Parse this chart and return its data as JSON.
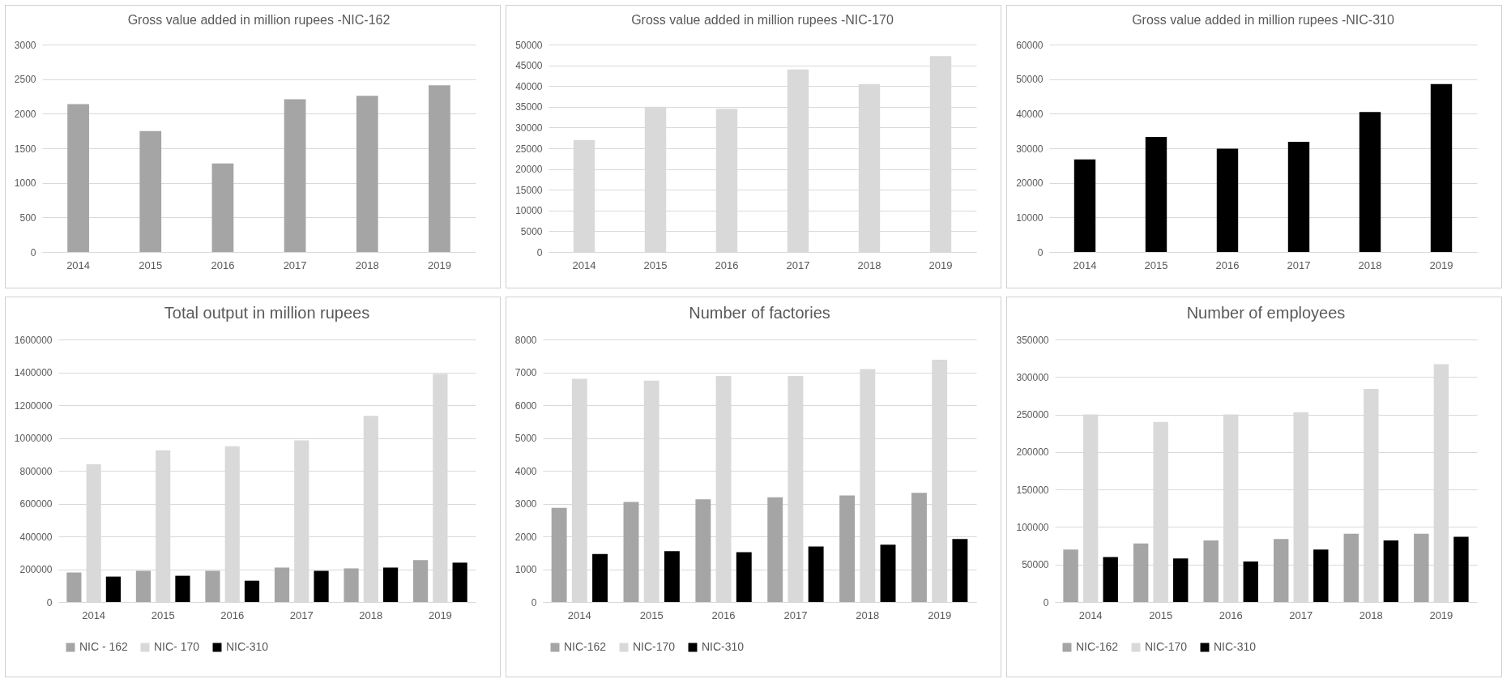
{
  "chart_data": [
    {
      "type": "bar",
      "title": "Gross value added in million rupees -NIC-162",
      "categories": [
        "2014",
        "2015",
        "2016",
        "2017",
        "2018",
        "2019"
      ],
      "values": [
        2140,
        1750,
        1280,
        2210,
        2260,
        2410
      ],
      "color": "#a5a5a5",
      "ylim": [
        0,
        3000
      ],
      "yticks": [
        0,
        500,
        1000,
        1500,
        2000,
        2500,
        3000
      ],
      "grid": "y"
    },
    {
      "type": "bar",
      "title": "Gross value added in million rupees -NIC-170",
      "categories": [
        "2014",
        "2015",
        "2016",
        "2017",
        "2018",
        "2019"
      ],
      "values": [
        27000,
        35000,
        34500,
        44000,
        40500,
        47200
      ],
      "color": "#d9d9d9",
      "ylim": [
        0,
        50000
      ],
      "yticks": [
        0,
        5000,
        10000,
        15000,
        20000,
        25000,
        30000,
        35000,
        40000,
        45000,
        50000
      ],
      "grid": "y"
    },
    {
      "type": "bar",
      "title": "Gross value added in million rupees -NIC-310",
      "categories": [
        "2014",
        "2015",
        "2016",
        "2017",
        "2018",
        "2019"
      ],
      "values": [
        26800,
        33300,
        29900,
        31900,
        40500,
        48600
      ],
      "color": "#000000",
      "ylim": [
        0,
        60000
      ],
      "yticks": [
        0,
        10000,
        20000,
        30000,
        40000,
        50000,
        60000
      ],
      "grid": "y"
    },
    {
      "type": "bar",
      "title": "Total output in million rupees",
      "categories": [
        "2014",
        "2015",
        "2016",
        "2017",
        "2018",
        "2019"
      ],
      "series": [
        {
          "name": "NIC - 162",
          "color": "#a5a5a5",
          "values": [
            180000,
            190000,
            190000,
            210000,
            205000,
            255000
          ]
        },
        {
          "name": "NIC- 170",
          "color": "#d9d9d9",
          "values": [
            840000,
            925000,
            950000,
            985000,
            1135000,
            1390000
          ]
        },
        {
          "name": "NIC-310",
          "color": "#000000",
          "values": [
            155000,
            160000,
            130000,
            190000,
            210000,
            240000
          ]
        }
      ],
      "ylim": [
        0,
        1600000
      ],
      "yticks": [
        0,
        200000,
        400000,
        600000,
        800000,
        1000000,
        1200000,
        1400000,
        1600000
      ],
      "grid": "y",
      "legend": "bottom"
    },
    {
      "type": "bar",
      "title": "Number of factories",
      "categories": [
        "2014",
        "2015",
        "2016",
        "2017",
        "2018",
        "2019"
      ],
      "series": [
        {
          "name": "NIC-162",
          "color": "#a5a5a5",
          "values": [
            2870,
            3050,
            3130,
            3190,
            3250,
            3330
          ]
        },
        {
          "name": "NIC-170",
          "color": "#d9d9d9",
          "values": [
            6800,
            6750,
            6890,
            6890,
            7100,
            7380
          ]
        },
        {
          "name": "NIC-310",
          "color": "#000000",
          "values": [
            1460,
            1550,
            1520,
            1690,
            1750,
            1920
          ]
        }
      ],
      "ylim": [
        0,
        8000
      ],
      "yticks": [
        0,
        1000,
        2000,
        3000,
        4000,
        5000,
        6000,
        7000,
        8000
      ],
      "grid": "y",
      "legend": "bottom"
    },
    {
      "type": "bar",
      "title": "Number of employees",
      "categories": [
        "2014",
        "2015",
        "2016",
        "2017",
        "2018",
        "2019"
      ],
      "series": [
        {
          "name": "NIC-162",
          "color": "#a5a5a5",
          "values": [
            70000,
            78000,
            82000,
            84000,
            91000,
            91000
          ]
        },
        {
          "name": "NIC-170",
          "color": "#d9d9d9",
          "values": [
            250000,
            240000,
            250000,
            253000,
            284000,
            317000
          ]
        },
        {
          "name": "NIC-310",
          "color": "#000000",
          "values": [
            60000,
            58000,
            54000,
            70000,
            82000,
            87000
          ]
        }
      ],
      "ylim": [
        0,
        350000
      ],
      "yticks": [
        0,
        50000,
        100000,
        150000,
        200000,
        250000,
        300000,
        350000
      ],
      "grid": "y",
      "legend": "bottom"
    }
  ]
}
